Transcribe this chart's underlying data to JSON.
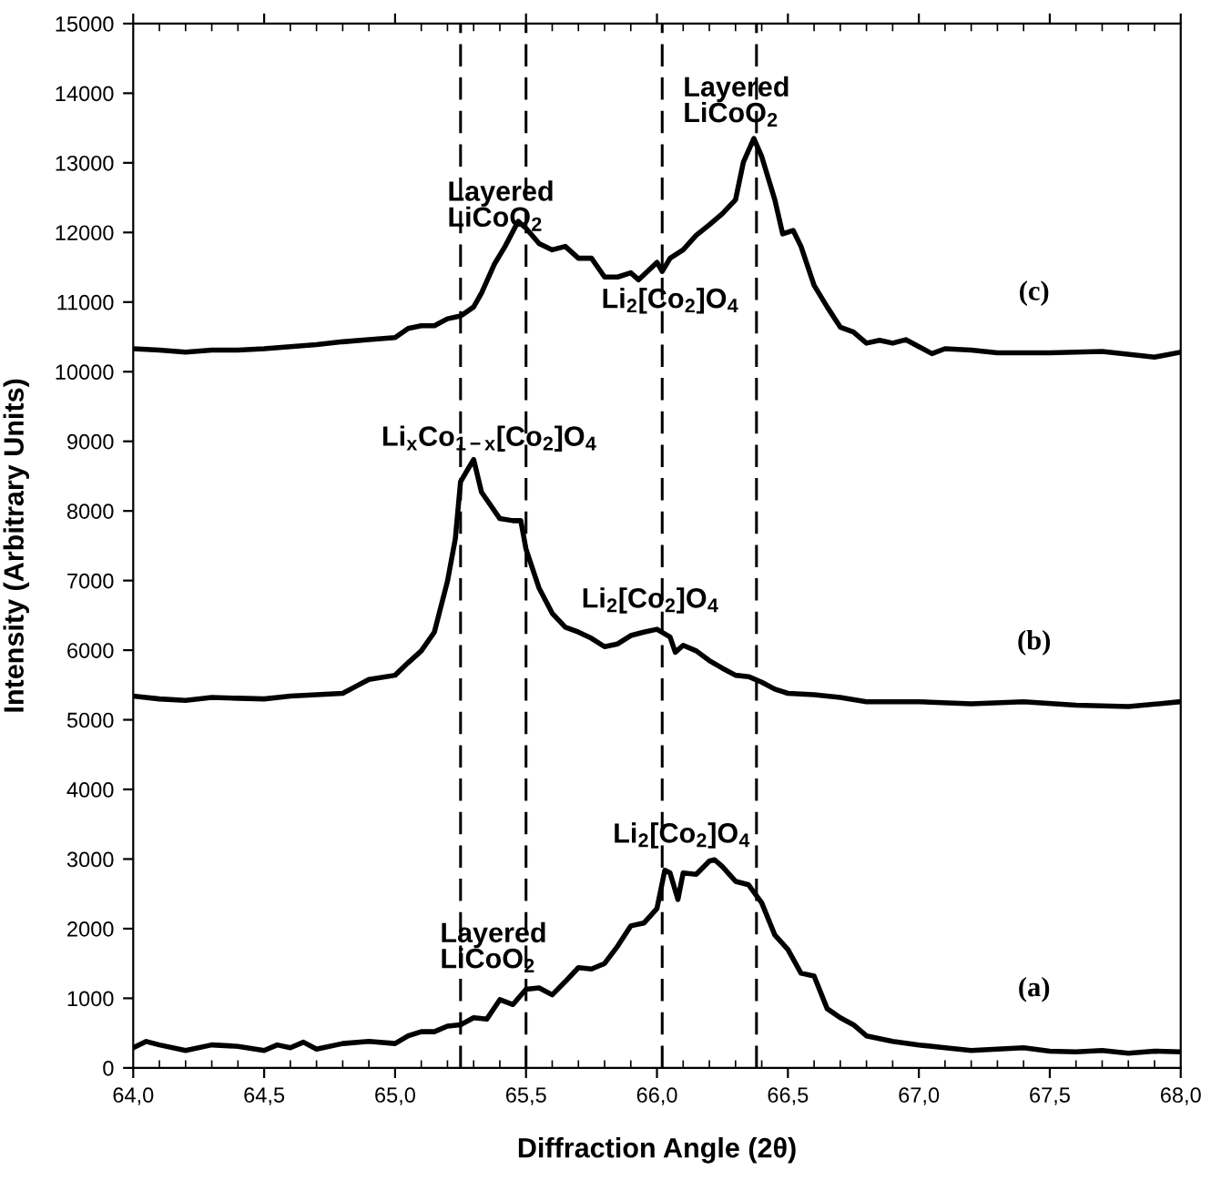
{
  "chart_data": {
    "type": "line",
    "xlabel": "Diffraction Angle (2θ)",
    "ylabel": "Intensity (Arbitrary Units)",
    "xlim": [
      64,
      68
    ],
    "xticks": [
      {
        "value": 64,
        "label": "64,0"
      },
      {
        "value": 64.5,
        "label": "64,5"
      },
      {
        "value": 65,
        "label": "65,0"
      },
      {
        "value": 65.5,
        "label": "65,5"
      },
      {
        "value": 66,
        "label": "66,0"
      },
      {
        "value": 66.5,
        "label": "66,5"
      },
      {
        "value": 67,
        "label": "67,0"
      },
      {
        "value": 67.5,
        "label": "67,5"
      },
      {
        "value": 68,
        "label": "68,0"
      }
    ],
    "ylim": [
      0,
      15000
    ],
    "yticks": [
      0,
      1000,
      2000,
      3000,
      4000,
      5000,
      6000,
      7000,
      8000,
      9000,
      10000,
      11000,
      12000,
      13000,
      14000,
      15000
    ],
    "grid": false,
    "legend": false,
    "marker": "none",
    "line_style": "solid",
    "series": [
      {
        "name": "(a)",
        "color": "#000000",
        "x": [
          64.0,
          64.05,
          64.1,
          64.2,
          64.3,
          64.4,
          64.5,
          64.55,
          64.6,
          64.65,
          64.7,
          64.8,
          64.9,
          65.0,
          65.05,
          65.1,
          65.15,
          65.2,
          65.25,
          65.3,
          65.35,
          65.4,
          65.45,
          65.5,
          65.55,
          65.6,
          65.65,
          65.7,
          65.75,
          65.8,
          65.85,
          65.9,
          65.95,
          66.0,
          66.03,
          66.05,
          66.08,
          66.1,
          66.15,
          66.2,
          66.22,
          66.25,
          66.3,
          66.35,
          66.4,
          66.45,
          66.5,
          66.55,
          66.6,
          66.65,
          66.7,
          66.75,
          66.8,
          66.9,
          67.0,
          67.1,
          67.2,
          67.3,
          67.4,
          67.5,
          67.6,
          67.7,
          67.8,
          67.9,
          68.0
        ],
        "values": [
          290,
          380,
          330,
          250,
          330,
          310,
          250,
          330,
          290,
          370,
          270,
          350,
          380,
          350,
          460,
          520,
          520,
          600,
          620,
          720,
          700,
          980,
          910,
          1130,
          1150,
          1050,
          1240,
          1440,
          1420,
          1500,
          1750,
          2040,
          2080,
          2290,
          2840,
          2800,
          2420,
          2800,
          2780,
          2970,
          2990,
          2890,
          2680,
          2630,
          2370,
          1910,
          1700,
          1360,
          1320,
          850,
          720,
          620,
          460,
          380,
          330,
          290,
          250,
          270,
          290,
          240,
          230,
          250,
          210,
          240,
          230
        ]
      },
      {
        "name": "(b)",
        "color": "#000000",
        "x": [
          64.0,
          64.1,
          64.2,
          64.3,
          64.4,
          64.5,
          64.6,
          64.7,
          64.8,
          64.85,
          64.9,
          65.0,
          65.05,
          65.1,
          65.15,
          65.2,
          65.23,
          65.25,
          65.3,
          65.33,
          65.4,
          65.45,
          65.48,
          65.5,
          65.55,
          65.6,
          65.65,
          65.7,
          65.75,
          65.8,
          65.85,
          65.9,
          65.95,
          66.0,
          66.05,
          66.07,
          66.1,
          66.15,
          66.2,
          66.25,
          66.3,
          66.35,
          66.4,
          66.45,
          66.5,
          66.6,
          66.7,
          66.8,
          66.9,
          67.0,
          67.2,
          67.4,
          67.6,
          67.8,
          68.0
        ],
        "values": [
          5340,
          5300,
          5280,
          5320,
          5310,
          5300,
          5340,
          5360,
          5380,
          5480,
          5580,
          5640,
          5820,
          5990,
          6260,
          6990,
          7600,
          8420,
          8740,
          8270,
          7890,
          7860,
          7860,
          7450,
          6890,
          6530,
          6330,
          6260,
          6170,
          6050,
          6090,
          6210,
          6260,
          6300,
          6190,
          5970,
          6070,
          5990,
          5850,
          5740,
          5640,
          5620,
          5540,
          5440,
          5380,
          5360,
          5320,
          5260,
          5260,
          5260,
          5230,
          5260,
          5210,
          5190,
          5260
        ]
      },
      {
        "name": "(c)",
        "color": "#000000",
        "x": [
          64.0,
          64.1,
          64.2,
          64.3,
          64.4,
          64.5,
          64.6,
          64.7,
          64.8,
          64.9,
          65.0,
          65.05,
          65.1,
          65.15,
          65.2,
          65.25,
          65.3,
          65.33,
          65.38,
          65.42,
          65.47,
          65.5,
          65.55,
          65.6,
          65.65,
          65.7,
          65.75,
          65.8,
          65.85,
          65.9,
          65.93,
          66.0,
          66.02,
          66.05,
          66.1,
          66.15,
          66.2,
          66.25,
          66.3,
          66.33,
          66.37,
          66.4,
          66.45,
          66.48,
          66.52,
          66.55,
          66.6,
          66.65,
          66.7,
          66.75,
          66.8,
          66.85,
          66.9,
          66.95,
          67.0,
          67.05,
          67.1,
          67.2,
          67.3,
          67.5,
          67.7,
          67.9,
          68.0
        ],
        "values": [
          10330,
          10310,
          10280,
          10310,
          10310,
          10330,
          10360,
          10390,
          10430,
          10460,
          10490,
          10620,
          10660,
          10660,
          10760,
          10800,
          10930,
          11130,
          11550,
          11800,
          12160,
          12060,
          11840,
          11750,
          11800,
          11630,
          11630,
          11360,
          11360,
          11420,
          11320,
          11570,
          11440,
          11630,
          11750,
          11960,
          12110,
          12270,
          12470,
          13010,
          13350,
          13090,
          12470,
          11980,
          12030,
          11800,
          11240,
          10930,
          10640,
          10570,
          10410,
          10450,
          10410,
          10460,
          10360,
          10260,
          10330,
          10310,
          10270,
          10270,
          10290,
          10210,
          10280
        ]
      }
    ],
    "ref_lines": [
      {
        "axis": "x",
        "value": 65.25,
        "color": "#000000",
        "line_style": "dashed"
      },
      {
        "axis": "x",
        "value": 65.5,
        "color": "#000000",
        "line_style": "dashed"
      },
      {
        "axis": "x",
        "value": 66.02,
        "color": "#000000",
        "line_style": "dashed"
      },
      {
        "axis": "x",
        "value": 66.38,
        "color": "#000000",
        "line_style": "dashed"
      }
    ],
    "annotations": [
      "Layered\nLiCoO$_{2}$",
      "Layered\nLiCoO$_{2}$",
      "Li$_{2}$[Co$_{2}$]O$_{4}$",
      "Li$_{x}$Co$_{1−x}$[Co$_{2}$]O$_{4}$",
      "Li$_{2}$[Co$_{2}$]O$_{4}$",
      "Li$_{2}$[Co$_{2}$]O$_{4}$",
      "Layered\nLiCoO$_{2}$"
    ]
  }
}
